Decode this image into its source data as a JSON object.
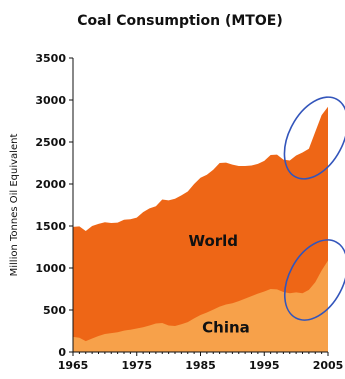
{
  "chart_data": {
    "type": "area",
    "title": "Coal Consumption (MTOE)",
    "xlabel": "",
    "ylabel": "Million Tonnes Oil Equivalent",
    "xlim": [
      1965,
      2005
    ],
    "ylim": [
      0,
      3500
    ],
    "x_ticks": [
      "1965",
      "1975",
      "1985",
      "1995",
      "2005"
    ],
    "y_ticks": [
      "0",
      "500",
      "1000",
      "1500",
      "2000",
      "2500",
      "3000",
      "3500"
    ],
    "stacked": false,
    "grid": false,
    "legend": "none",
    "x": [
      1965,
      1966,
      1967,
      1968,
      1969,
      1970,
      1971,
      1972,
      1973,
      1974,
      1975,
      1976,
      1977,
      1978,
      1979,
      1980,
      1981,
      1982,
      1983,
      1984,
      1985,
      1986,
      1987,
      1988,
      1989,
      1990,
      1991,
      1992,
      1993,
      1994,
      1995,
      1996,
      1997,
      1998,
      1999,
      2000,
      2001,
      2002,
      2003,
      2004,
      2005
    ],
    "series": [
      {
        "name": "World",
        "color": "#EE6616",
        "values": [
          1490,
          1495,
          1440,
          1500,
          1525,
          1545,
          1535,
          1540,
          1575,
          1580,
          1600,
          1665,
          1710,
          1735,
          1815,
          1805,
          1825,
          1865,
          1910,
          2000,
          2075,
          2110,
          2170,
          2250,
          2255,
          2230,
          2215,
          2215,
          2220,
          2240,
          2275,
          2345,
          2350,
          2290,
          2280,
          2340,
          2375,
          2420,
          2620,
          2820,
          2920
        ]
      },
      {
        "name": "China",
        "color": "#F7A14A",
        "values": [
          180,
          170,
          130,
          160,
          190,
          215,
          225,
          235,
          255,
          265,
          280,
          295,
          315,
          340,
          345,
          315,
          310,
          330,
          355,
          400,
          440,
          470,
          505,
          540,
          565,
          580,
          605,
          635,
          665,
          695,
          720,
          750,
          745,
          715,
          700,
          710,
          700,
          740,
          830,
          970,
          1090
        ]
      }
    ],
    "annotations": [
      {
        "text": "World"
      },
      {
        "text": "China"
      }
    ],
    "highlight_color": "#3355BB"
  }
}
